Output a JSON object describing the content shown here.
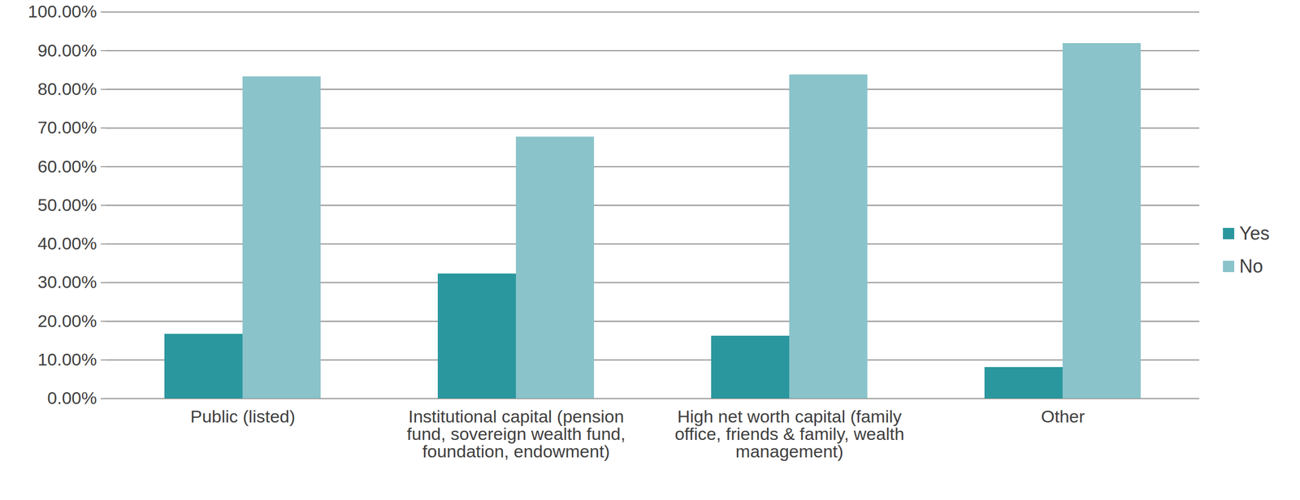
{
  "chart_data": {
    "type": "bar",
    "categories": [
      "Public (listed)",
      "Institutional capital (pension fund, sovereign wealth fund, foundation, endowment)",
      "High net worth capital (family office, friends & family, wealth management)",
      "Other"
    ],
    "series": [
      {
        "name": "Yes",
        "color": "#2a979e",
        "values": [
          16.7,
          32.3,
          16.2,
          8.1
        ]
      },
      {
        "name": "No",
        "color": "#8ac3ca",
        "values": [
          83.3,
          67.7,
          83.8,
          91.9
        ]
      }
    ],
    "ylim": [
      0,
      100
    ],
    "yticks": [
      {
        "value": 0,
        "label": "0.00%"
      },
      {
        "value": 10,
        "label": "10.00%"
      },
      {
        "value": 20,
        "label": "20.00%"
      },
      {
        "value": 30,
        "label": "30.00%"
      },
      {
        "value": 40,
        "label": "40.00%"
      },
      {
        "value": 50,
        "label": "50.00%"
      },
      {
        "value": 60,
        "label": "60.00%"
      },
      {
        "value": 70,
        "label": "70.00%"
      },
      {
        "value": 80,
        "label": "80.00%"
      },
      {
        "value": 90,
        "label": "90.00%"
      },
      {
        "value": 100,
        "label": "100.00%"
      }
    ],
    "grid": true,
    "legend": "right"
  }
}
